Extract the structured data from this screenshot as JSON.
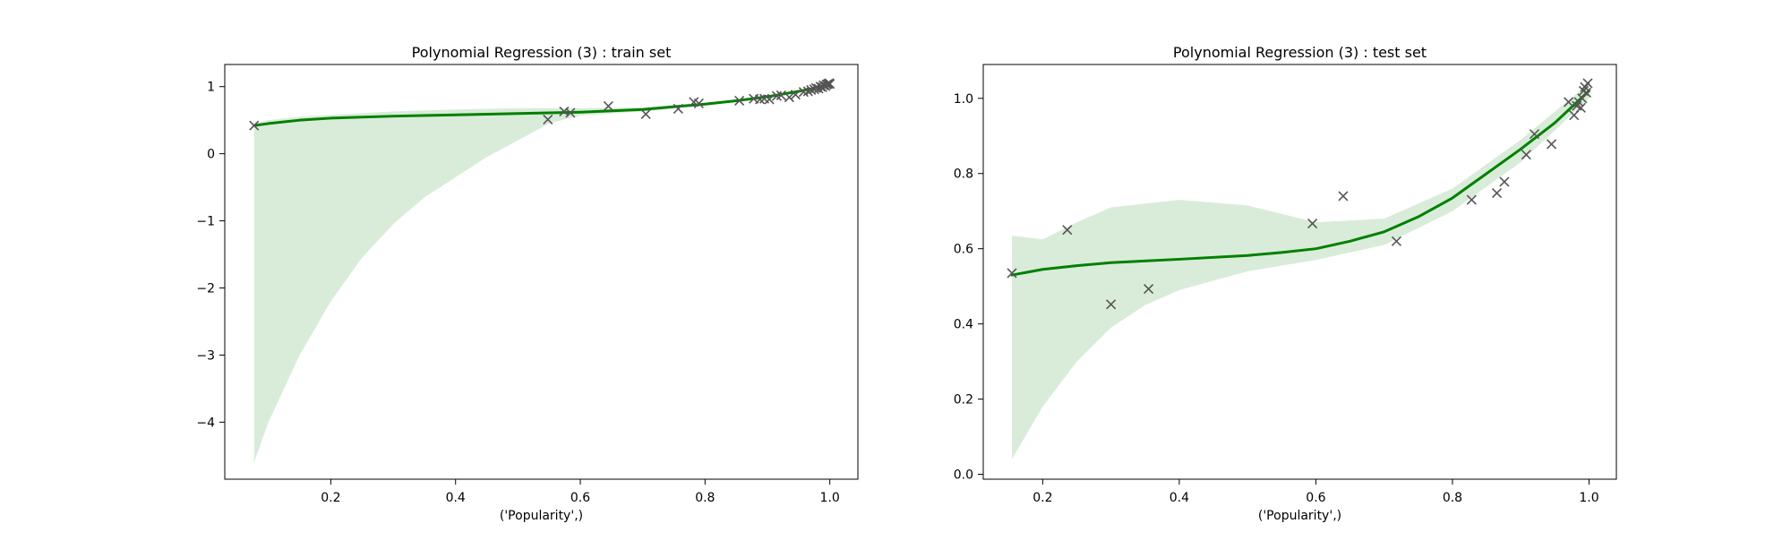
{
  "figure": {
    "background": "#ffffff"
  },
  "chart_data": [
    {
      "type": "scatter",
      "title": "Polynomial Regression (3) : train set",
      "xlabel": "('Popularity',)",
      "ylabel": "",
      "xlim": [
        0.03,
        1.045
      ],
      "ylim": [
        -4.85,
        1.33
      ],
      "xticks": [
        0.2,
        0.4,
        0.6,
        0.8,
        1.0
      ],
      "xtick_labels": [
        "0.2",
        "0.4",
        "0.6",
        "0.8",
        "1.0"
      ],
      "yticks": [
        -4,
        -3,
        -2,
        -1,
        0,
        1
      ],
      "ytick_labels": [
        "−4",
        "−3",
        "−2",
        "−1",
        "0",
        "1"
      ],
      "grid": false,
      "series": [
        {
          "kind": "points",
          "marker": "x",
          "color": "#555555",
          "points": [
            [
              0.077,
              0.42
            ],
            [
              0.548,
              0.51
            ],
            [
              0.574,
              0.63
            ],
            [
              0.584,
              0.61
            ],
            [
              0.645,
              0.71
            ],
            [
              0.705,
              0.59
            ],
            [
              0.757,
              0.67
            ],
            [
              0.782,
              0.77
            ],
            [
              0.79,
              0.75
            ],
            [
              0.855,
              0.79
            ],
            [
              0.878,
              0.82
            ],
            [
              0.888,
              0.81
            ],
            [
              0.895,
              0.82
            ],
            [
              0.903,
              0.81
            ],
            [
              0.915,
              0.86
            ],
            [
              0.922,
              0.87
            ],
            [
              0.935,
              0.84
            ],
            [
              0.945,
              0.88
            ],
            [
              0.958,
              0.92
            ],
            [
              0.965,
              0.93
            ],
            [
              0.97,
              0.95
            ],
            [
              0.975,
              0.96
            ],
            [
              0.978,
              0.98
            ],
            [
              0.982,
              0.97
            ],
            [
              0.985,
              1.0
            ],
            [
              0.988,
              0.99
            ],
            [
              0.99,
              1.02
            ],
            [
              0.993,
              1.01
            ],
            [
              0.995,
              1.03
            ],
            [
              0.997,
              1.04
            ],
            [
              0.999,
              1.05
            ],
            [
              1.0,
              1.04
            ]
          ]
        },
        {
          "kind": "fit-line",
          "color": "#008000",
          "points": [
            [
              0.077,
              0.42
            ],
            [
              0.1,
              0.45
            ],
            [
              0.15,
              0.5
            ],
            [
              0.2,
              0.53
            ],
            [
              0.3,
              0.56
            ],
            [
              0.4,
              0.58
            ],
            [
              0.5,
              0.6
            ],
            [
              0.6,
              0.62
            ],
            [
              0.7,
              0.66
            ],
            [
              0.8,
              0.74
            ],
            [
              0.85,
              0.79
            ],
            [
              0.9,
              0.85
            ],
            [
              0.95,
              0.93
            ],
            [
              1.0,
              1.02
            ]
          ]
        },
        {
          "kind": "confidence-band",
          "color": "#d9ecd9",
          "lower": [
            [
              0.077,
              -4.6
            ],
            [
              0.1,
              -4.0
            ],
            [
              0.15,
              -3.0
            ],
            [
              0.2,
              -2.2
            ],
            [
              0.25,
              -1.55
            ],
            [
              0.3,
              -1.05
            ],
            [
              0.35,
              -0.65
            ],
            [
              0.4,
              -0.35
            ],
            [
              0.45,
              -0.05
            ],
            [
              0.5,
              0.2
            ],
            [
              0.55,
              0.45
            ],
            [
              0.6,
              0.57
            ],
            [
              0.7,
              0.63
            ],
            [
              0.8,
              0.72
            ],
            [
              0.9,
              0.84
            ],
            [
              1.0,
              1.0
            ]
          ],
          "upper": [
            [
              0.077,
              0.45
            ],
            [
              0.1,
              0.5
            ],
            [
              0.15,
              0.55
            ],
            [
              0.2,
              0.58
            ],
            [
              0.3,
              0.63
            ],
            [
              0.4,
              0.66
            ],
            [
              0.5,
              0.68
            ],
            [
              0.6,
              0.68
            ],
            [
              0.7,
              0.69
            ],
            [
              0.8,
              0.76
            ],
            [
              0.9,
              0.86
            ],
            [
              1.0,
              1.04
            ]
          ]
        }
      ]
    },
    {
      "type": "scatter",
      "title": "Polynomial Regression (3) : test set",
      "xlabel": "('Popularity',)",
      "ylabel": "",
      "xlim": [
        0.113,
        1.04
      ],
      "ylim": [
        -0.013,
        1.09
      ],
      "xticks": [
        0.2,
        0.4,
        0.6,
        0.8,
        1.0
      ],
      "xtick_labels": [
        "0.2",
        "0.4",
        "0.6",
        "0.8",
        "1.0"
      ],
      "yticks": [
        0.0,
        0.2,
        0.4,
        0.6,
        0.8,
        1.0
      ],
      "ytick_labels": [
        "0.0",
        "0.2",
        "0.4",
        "0.6",
        "0.8",
        "1.0"
      ],
      "grid": false,
      "series": [
        {
          "kind": "points",
          "marker": "x",
          "color": "#555555",
          "points": [
            [
              0.155,
              0.535
            ],
            [
              0.236,
              0.65
            ],
            [
              0.3,
              0.452
            ],
            [
              0.355,
              0.493
            ],
            [
              0.595,
              0.667
            ],
            [
              0.64,
              0.74
            ],
            [
              0.718,
              0.62
            ],
            [
              0.828,
              0.73
            ],
            [
              0.865,
              0.748
            ],
            [
              0.876,
              0.778
            ],
            [
              0.908,
              0.85
            ],
            [
              0.92,
              0.905
            ],
            [
              0.945,
              0.878
            ],
            [
              0.97,
              0.99
            ],
            [
              0.978,
              0.955
            ],
            [
              0.982,
              0.98
            ],
            [
              0.985,
              0.99
            ],
            [
              0.988,
              0.975
            ],
            [
              0.99,
              1.0
            ],
            [
              0.992,
              1.02
            ],
            [
              0.994,
              1.03
            ],
            [
              0.996,
              1.015
            ],
            [
              0.998,
              1.04
            ]
          ]
        },
        {
          "kind": "fit-line",
          "color": "#008000",
          "points": [
            [
              0.155,
              0.53
            ],
            [
              0.2,
              0.545
            ],
            [
              0.25,
              0.555
            ],
            [
              0.3,
              0.563
            ],
            [
              0.4,
              0.572
            ],
            [
              0.5,
              0.582
            ],
            [
              0.55,
              0.59
            ],
            [
              0.6,
              0.6
            ],
            [
              0.65,
              0.62
            ],
            [
              0.7,
              0.645
            ],
            [
              0.75,
              0.685
            ],
            [
              0.8,
              0.735
            ],
            [
              0.85,
              0.8
            ],
            [
              0.9,
              0.865
            ],
            [
              0.95,
              0.935
            ],
            [
              1.0,
              1.02
            ]
          ]
        },
        {
          "kind": "confidence-band",
          "color": "#d9ecd9",
          "lower": [
            [
              0.155,
              0.04
            ],
            [
              0.2,
              0.18
            ],
            [
              0.25,
              0.3
            ],
            [
              0.3,
              0.39
            ],
            [
              0.35,
              0.45
            ],
            [
              0.4,
              0.49
            ],
            [
              0.5,
              0.54
            ],
            [
              0.6,
              0.57
            ],
            [
              0.7,
              0.61
            ],
            [
              0.8,
              0.7
            ],
            [
              0.9,
              0.83
            ],
            [
              1.0,
              1.0
            ]
          ],
          "upper": [
            [
              0.155,
              0.635
            ],
            [
              0.2,
              0.625
            ],
            [
              0.25,
              0.67
            ],
            [
              0.3,
              0.71
            ],
            [
              0.4,
              0.73
            ],
            [
              0.5,
              0.715
            ],
            [
              0.6,
              0.67
            ],
            [
              0.7,
              0.68
            ],
            [
              0.8,
              0.76
            ],
            [
              0.9,
              0.89
            ],
            [
              1.0,
              1.04
            ]
          ]
        }
      ]
    }
  ]
}
